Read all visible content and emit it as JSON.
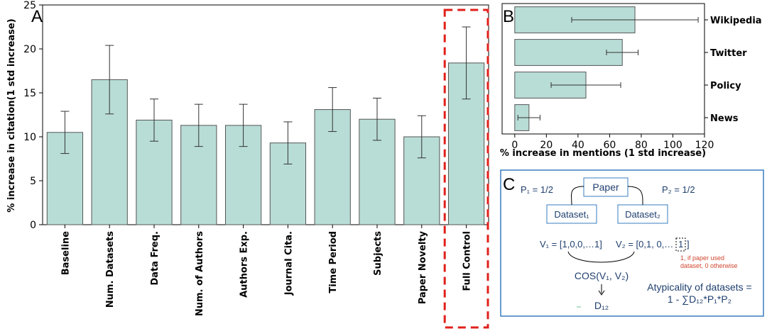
{
  "panel_labels": {
    "a": "A",
    "b": "B",
    "c": "C"
  },
  "chart_data": [
    {
      "type": "bar",
      "orientation": "vertical",
      "categories": [
        "Baseline",
        "Num. Datasets",
        "Data Freq.",
        "Num. of Authors",
        "Authors Exp.",
        "Journal Cita.",
        "Time Period",
        "Subjects",
        "Paper Novelty",
        "Full Control"
      ],
      "values": [
        10.5,
        16.5,
        11.9,
        11.3,
        11.3,
        9.3,
        13.1,
        12.0,
        10.0,
        18.4
      ],
      "errors": [
        2.4,
        3.9,
        2.4,
        2.4,
        2.4,
        2.4,
        2.5,
        2.4,
        2.4,
        4.1
      ],
      "ylabel": "% increase in citation(1 std increase)",
      "xlabel": "",
      "ylim": [
        0,
        25
      ],
      "yticks": [
        0,
        5,
        10,
        15,
        20,
        25
      ],
      "bar_color": "#b8ddd6",
      "highlight_category": "Full Control",
      "highlight_color": "#e0201b"
    },
    {
      "type": "bar",
      "orientation": "horizontal",
      "categories": [
        "Wikipedia",
        "Twitter",
        "Policy",
        "News"
      ],
      "values": [
        76,
        68,
        45,
        9
      ],
      "errors": [
        40,
        10,
        22,
        7
      ],
      "xlabel": "% increase in mentions (1 std increase)",
      "xlim": [
        -8,
        120
      ],
      "xticks": [
        0,
        20,
        40,
        60,
        80,
        100,
        120
      ],
      "bar_color": "#b8ddd6"
    }
  ],
  "diagram_c": {
    "paper": "Paper",
    "dataset1": "Dataset₁",
    "dataset2": "Dataset₂",
    "p1": "P₁ = 1/2",
    "p2": "P₂ = 1/2",
    "v1": "V₁ = [1,0,0,…1]",
    "v2_prefix": "V₂ = [0,1, 0,…",
    "v2_boxed": "1",
    "v2_suffix": "]",
    "note_line1": "1, if paper used",
    "note_line2": "dataset, 0 otherwise",
    "cos": "COS(V₁, V₂)",
    "d12": "D₁₂",
    "atyp_line1": "Atypicality of datasets =",
    "atyp_line2": "1 - ∑D₁₂*P₁*P₂",
    "text_color": "#1f3f6e",
    "note_color": "#d0472f",
    "border_color": "#3a7dbf"
  }
}
